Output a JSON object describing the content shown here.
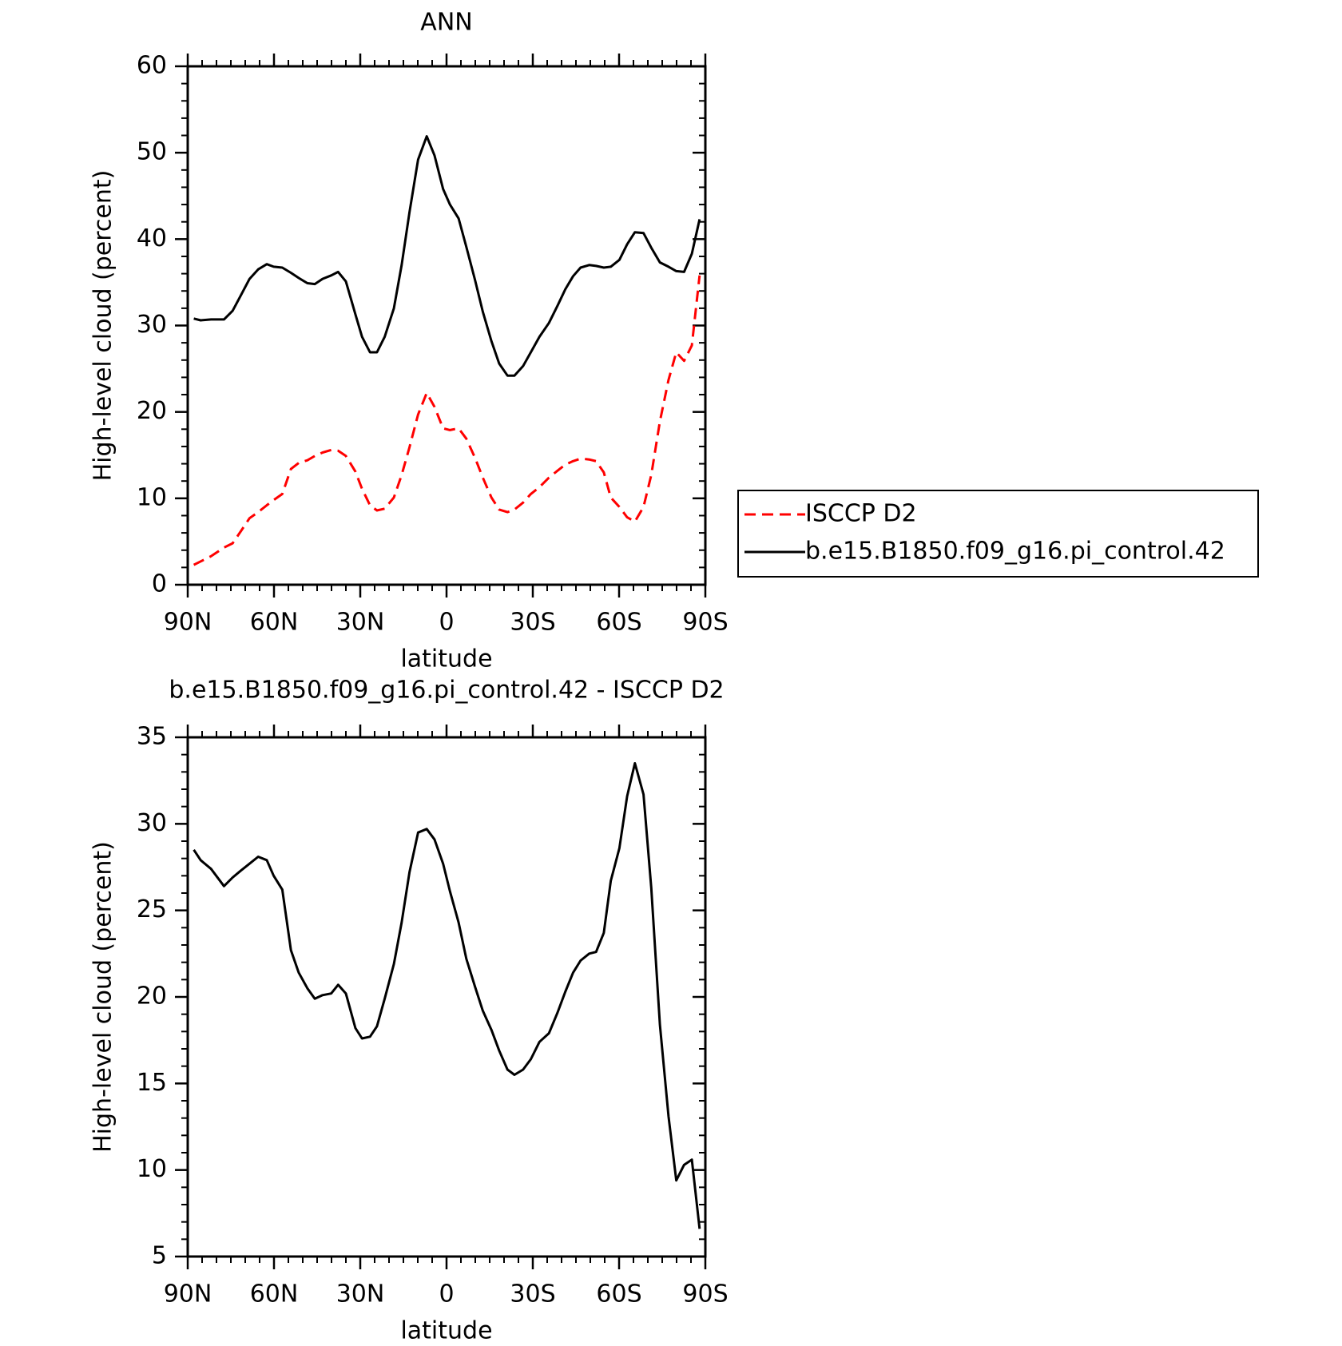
{
  "chart_data": [
    {
      "type": "line",
      "title": "ANN",
      "x_label": "latitude",
      "y_label": "High-level cloud (percent)",
      "x": [
        87.9,
        85.5,
        81.9,
        77.4,
        74.4,
        71.5,
        68.5,
        65.5,
        62.5,
        60.1,
        57.1,
        54.1,
        51.4,
        48.4,
        45.8,
        43.1,
        40.1,
        37.7,
        35.0,
        31.7,
        29.4,
        26.6,
        24.2,
        21.5,
        18.3,
        15.6,
        12.9,
        9.9,
        6.9,
        4.2,
        1.2,
        -1.2,
        -4.2,
        -6.9,
        -9.9,
        -12.6,
        -15.6,
        -18.3,
        -21.2,
        -23.6,
        -26.6,
        -29.3,
        -32.3,
        -35.6,
        -38.6,
        -41.3,
        -44.0,
        -46.6,
        -49.6,
        -52.0,
        -54.7,
        -57.1,
        -60.1,
        -62.8,
        -65.5,
        -68.5,
        -71.2,
        -74.2,
        -77.2,
        -79.9,
        -82.6,
        -85.3,
        -88.0
      ],
      "series": [
        {
          "name": "ISCCP D2",
          "color": "#ff0000",
          "line_style": "dashed",
          "values": [
            2.3,
            2.7,
            3.3,
            4.3,
            4.8,
            6.2,
            7.7,
            8.4,
            9.2,
            9.8,
            10.5,
            13.4,
            14.1,
            14.4,
            14.9,
            15.3,
            15.6,
            15.5,
            14.9,
            13.1,
            11.1,
            9.2,
            8.6,
            8.8,
            10.1,
            12.7,
            15.9,
            19.7,
            22.2,
            20.6,
            18.1,
            17.9,
            18.1,
            16.9,
            14.7,
            12.4,
            10.1,
            8.7,
            8.4,
            8.7,
            9.5,
            10.5,
            11.3,
            12.4,
            13.2,
            13.9,
            14.3,
            14.6,
            14.5,
            14.3,
            13.0,
            10.1,
            9.0,
            7.8,
            7.3,
            9.0,
            12.7,
            18.9,
            23.7,
            26.9,
            25.9,
            27.7,
            35.8
          ]
        },
        {
          "name": "b.e15.B1850.f09_g16.pi_control.42",
          "color": "#000000",
          "line_style": "solid",
          "values": [
            30.8,
            30.6,
            30.7,
            30.7,
            31.7,
            33.5,
            35.4,
            36.5,
            37.1,
            36.8,
            36.7,
            36.1,
            35.5,
            34.9,
            34.8,
            35.4,
            35.8,
            36.2,
            35.1,
            31.3,
            28.7,
            26.9,
            26.9,
            28.7,
            32.0,
            37.0,
            43.1,
            49.2,
            51.9,
            49.7,
            45.8,
            44.0,
            42.4,
            39.1,
            35.3,
            31.6,
            28.2,
            25.6,
            24.2,
            24.2,
            25.3,
            26.9,
            28.7,
            30.3,
            32.3,
            34.2,
            35.7,
            36.7,
            37.0,
            36.9,
            36.7,
            36.8,
            37.6,
            39.4,
            40.8,
            40.7,
            39.0,
            37.3,
            36.8,
            36.3,
            36.2,
            38.3,
            42.3
          ]
        }
      ],
      "xlim": [
        90,
        -90
      ],
      "xticks": [
        {
          "value": 90,
          "label": "90N"
        },
        {
          "value": 60,
          "label": "60N"
        },
        {
          "value": 30,
          "label": "30N"
        },
        0,
        {
          "value": -30,
          "label": "30S"
        },
        {
          "value": -60,
          "label": "60S"
        },
        {
          "value": -90,
          "label": "90S"
        }
      ],
      "ylim": [
        0,
        60
      ],
      "yticks": [
        0,
        10,
        20,
        30,
        40,
        50,
        60
      ],
      "legend": "right"
    },
    {
      "type": "line",
      "title": "b.e15.B1850.f09_g16.pi_control.42 - ISCCP D2",
      "x_label": "latitude",
      "y_label": "High-level cloud (percent)",
      "x": [
        87.9,
        85.5,
        81.9,
        77.4,
        74.4,
        71.5,
        68.5,
        65.5,
        62.5,
        60.1,
        57.1,
        54.1,
        51.4,
        48.4,
        45.8,
        43.1,
        40.1,
        37.7,
        35.0,
        31.7,
        29.4,
        26.6,
        24.2,
        21.5,
        18.3,
        15.6,
        12.9,
        9.9,
        6.9,
        4.2,
        1.2,
        -1.2,
        -4.2,
        -6.9,
        -9.9,
        -12.6,
        -15.6,
        -18.3,
        -21.2,
        -23.6,
        -26.6,
        -29.3,
        -32.3,
        -35.6,
        -38.6,
        -41.3,
        -44.0,
        -46.6,
        -49.6,
        -52.0,
        -54.7,
        -57.1,
        -60.1,
        -62.8,
        -65.5,
        -68.5,
        -71.2,
        -74.2,
        -77.2,
        -79.9,
        -82.6,
        -85.3,
        -88.0
      ],
      "series": [
        {
          "color": "#000000",
          "line_style": "solid",
          "values": [
            28.5,
            27.9,
            27.4,
            26.4,
            26.9,
            27.3,
            27.7,
            28.1,
            27.9,
            27.0,
            26.2,
            22.7,
            21.4,
            20.5,
            19.9,
            20.1,
            20.2,
            20.7,
            20.2,
            18.2,
            17.6,
            17.7,
            18.3,
            19.9,
            21.9,
            24.3,
            27.2,
            29.5,
            29.7,
            29.1,
            27.7,
            26.1,
            24.3,
            22.2,
            20.6,
            19.2,
            18.1,
            16.9,
            15.8,
            15.5,
            15.8,
            16.4,
            17.4,
            17.9,
            19.1,
            20.3,
            21.4,
            22.1,
            22.5,
            22.6,
            23.7,
            26.7,
            28.6,
            31.6,
            33.5,
            31.7,
            26.3,
            18.4,
            13.1,
            9.4,
            10.3,
            10.6,
            6.6
          ]
        }
      ],
      "xlim": [
        90,
        -90
      ],
      "xticks": [
        {
          "value": 90,
          "label": "90N"
        },
        {
          "value": 60,
          "label": "60N"
        },
        {
          "value": 30,
          "label": "30N"
        },
        0,
        {
          "value": -30,
          "label": "30S"
        },
        {
          "value": -60,
          "label": "60S"
        },
        {
          "value": -90,
          "label": "90S"
        }
      ],
      "ylim": [
        5,
        35
      ],
      "yticks": [
        5,
        10,
        15,
        20,
        25,
        30,
        35
      ]
    }
  ]
}
